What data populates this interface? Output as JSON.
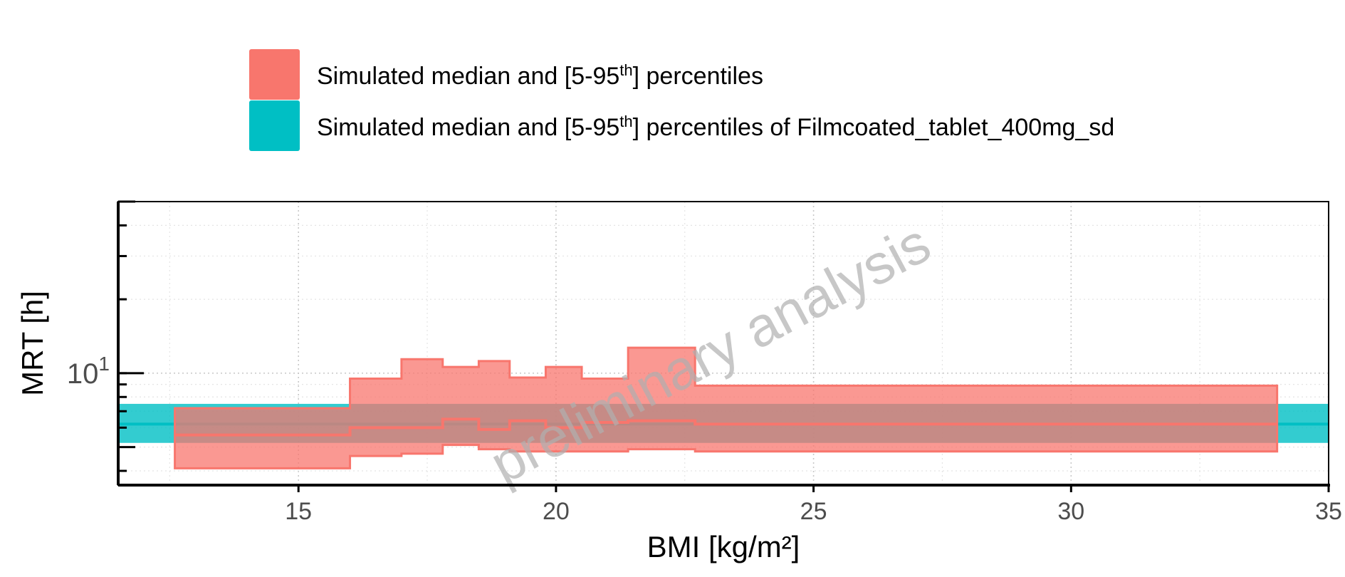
{
  "chart_data": {
    "type": "area",
    "xlabel": "BMI [kg/m²]",
    "ylabel": "MRT [h]",
    "xlim": [
      11.5,
      35
    ],
    "ylim": [
      3.5,
      50
    ],
    "y_scale": "log",
    "x_ticks": [
      15,
      20,
      25,
      30,
      35
    ],
    "y_ticks": [
      {
        "value": 10,
        "base": "10",
        "exp": "1"
      }
    ],
    "grid": true,
    "legend_position": "top",
    "watermark": "preliminary analysis",
    "colors": {
      "simulated": "#F8766D",
      "reference": "#00BFC4"
    },
    "series": [
      {
        "name": "Simulated median and [5-95th] percentiles",
        "color": "#F8766D",
        "bins": [
          {
            "x": [
              12.6,
              16.0
            ],
            "lower": 4.1,
            "median": 5.6,
            "upper": 7.2
          },
          {
            "x": [
              16.0,
              17.0
            ],
            "lower": 4.6,
            "median": 6.0,
            "upper": 9.5
          },
          {
            "x": [
              17.0,
              17.8
            ],
            "lower": 4.7,
            "median": 6.0,
            "upper": 11.4
          },
          {
            "x": [
              17.8,
              18.5
            ],
            "lower": 5.1,
            "median": 6.5,
            "upper": 10.6
          },
          {
            "x": [
              18.5,
              19.1
            ],
            "lower": 4.9,
            "median": 5.9,
            "upper": 11.2
          },
          {
            "x": [
              19.1,
              19.8
            ],
            "lower": 4.8,
            "median": 6.4,
            "upper": 9.6
          },
          {
            "x": [
              19.8,
              20.5
            ],
            "lower": 4.8,
            "median": 6.0,
            "upper": 10.6
          },
          {
            "x": [
              20.5,
              21.4
            ],
            "lower": 4.8,
            "median": 6.3,
            "upper": 9.5
          },
          {
            "x": [
              21.4,
              22.7
            ],
            "lower": 4.9,
            "median": 6.4,
            "upper": 12.7
          },
          {
            "x": [
              22.7,
              34.0
            ],
            "lower": 4.8,
            "median": 6.2,
            "upper": 8.9
          }
        ]
      },
      {
        "name": "Simulated median and [5-95th] percentiles of Filmcoated_tablet_400mg_sd",
        "color": "#00BFC4",
        "lower": 5.2,
        "median": 6.2,
        "upper": 7.5
      }
    ]
  },
  "legend": {
    "items": [
      {
        "pre": "Simulated median and [5-95",
        "sup": "th",
        "post": "] percentiles"
      },
      {
        "pre": "Simulated median and [5-95",
        "sup": "th",
        "post": "] percentiles of Filmcoated_tablet_400mg_sd"
      }
    ]
  }
}
